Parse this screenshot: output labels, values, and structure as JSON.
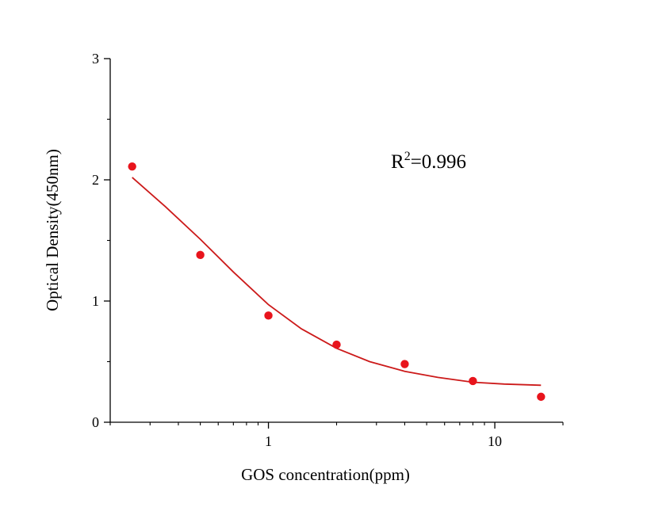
{
  "chart_data": {
    "type": "scatter",
    "xlabel": "GOS concentration(ppm)",
    "ylabel": "Optical Density(450nm)",
    "annotation": {
      "base": "R",
      "sup": "2",
      "rest": "=0.996"
    },
    "x_scale": "log",
    "xlim": [
      0.2,
      20
    ],
    "ylim": [
      0,
      3
    ],
    "x_ticks": [
      1,
      10
    ],
    "x_tick_labels": [
      "1",
      "10"
    ],
    "y_ticks": [
      0,
      1,
      2,
      3
    ],
    "y_tick_labels": [
      "0",
      "1",
      "2",
      "3"
    ],
    "grid": false,
    "series": [
      {
        "points": [
          {
            "x": 0.25,
            "y": 2.11
          },
          {
            "x": 0.5,
            "y": 1.38
          },
          {
            "x": 1,
            "y": 0.88
          },
          {
            "x": 2,
            "y": 0.64
          },
          {
            "x": 4,
            "y": 0.48
          },
          {
            "x": 8,
            "y": 0.34
          },
          {
            "x": 16,
            "y": 0.21
          }
        ],
        "color": "#e8141c"
      }
    ],
    "fit_curve": {
      "color": "#cc1a1a",
      "points": [
        {
          "x": 0.25,
          "y": 2.02
        },
        {
          "x": 0.35,
          "y": 1.78
        },
        {
          "x": 0.5,
          "y": 1.51
        },
        {
          "x": 0.7,
          "y": 1.24
        },
        {
          "x": 1,
          "y": 0.97
        },
        {
          "x": 1.4,
          "y": 0.77
        },
        {
          "x": 2,
          "y": 0.61
        },
        {
          "x": 2.8,
          "y": 0.5
        },
        {
          "x": 4,
          "y": 0.42
        },
        {
          "x": 5.6,
          "y": 0.37
        },
        {
          "x": 8,
          "y": 0.33
        },
        {
          "x": 11,
          "y": 0.315
        },
        {
          "x": 16,
          "y": 0.305
        }
      ]
    }
  }
}
